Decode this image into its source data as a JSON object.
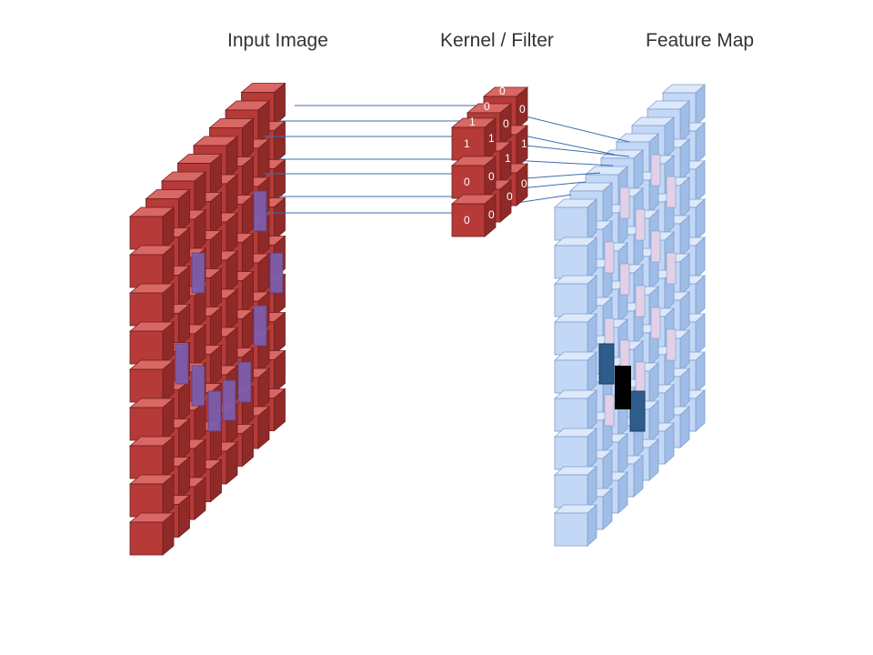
{
  "titles": {
    "input": "Input Image",
    "kernel": "Kernel / Filter",
    "feature": "Feature Map"
  },
  "colors": {
    "input_front": "#b53a38",
    "input_top": "#d96764",
    "input_side": "#8f2a28",
    "input_stroke": "#6f1f1d",
    "input_highlight": "#7e5cab",
    "kernel_front": "#b53a38",
    "feature_front": "#c3d8f6",
    "feature_top": "#dde9fb",
    "feature_side": "#9fbde6",
    "feature_stroke": "#7f9fcc",
    "feature_pink": "#e3d0e6",
    "feature_dark_blue": "#2e5d8c",
    "feature_black": "#000000",
    "connector": "#3d6db0"
  },
  "kernel": {
    "layers": [
      [
        "1",
        "0",
        "0"
      ],
      [
        "1",
        "0",
        "0"
      ],
      [
        "0",
        "1",
        "0"
      ],
      [
        "0",
        "1",
        "0"
      ]
    ],
    "description": "3x3 kernel values as displayed on cube faces"
  },
  "grids": {
    "input": {
      "rows": 9,
      "cols": 8
    },
    "feature": {
      "rows": 9,
      "cols": 8
    }
  }
}
